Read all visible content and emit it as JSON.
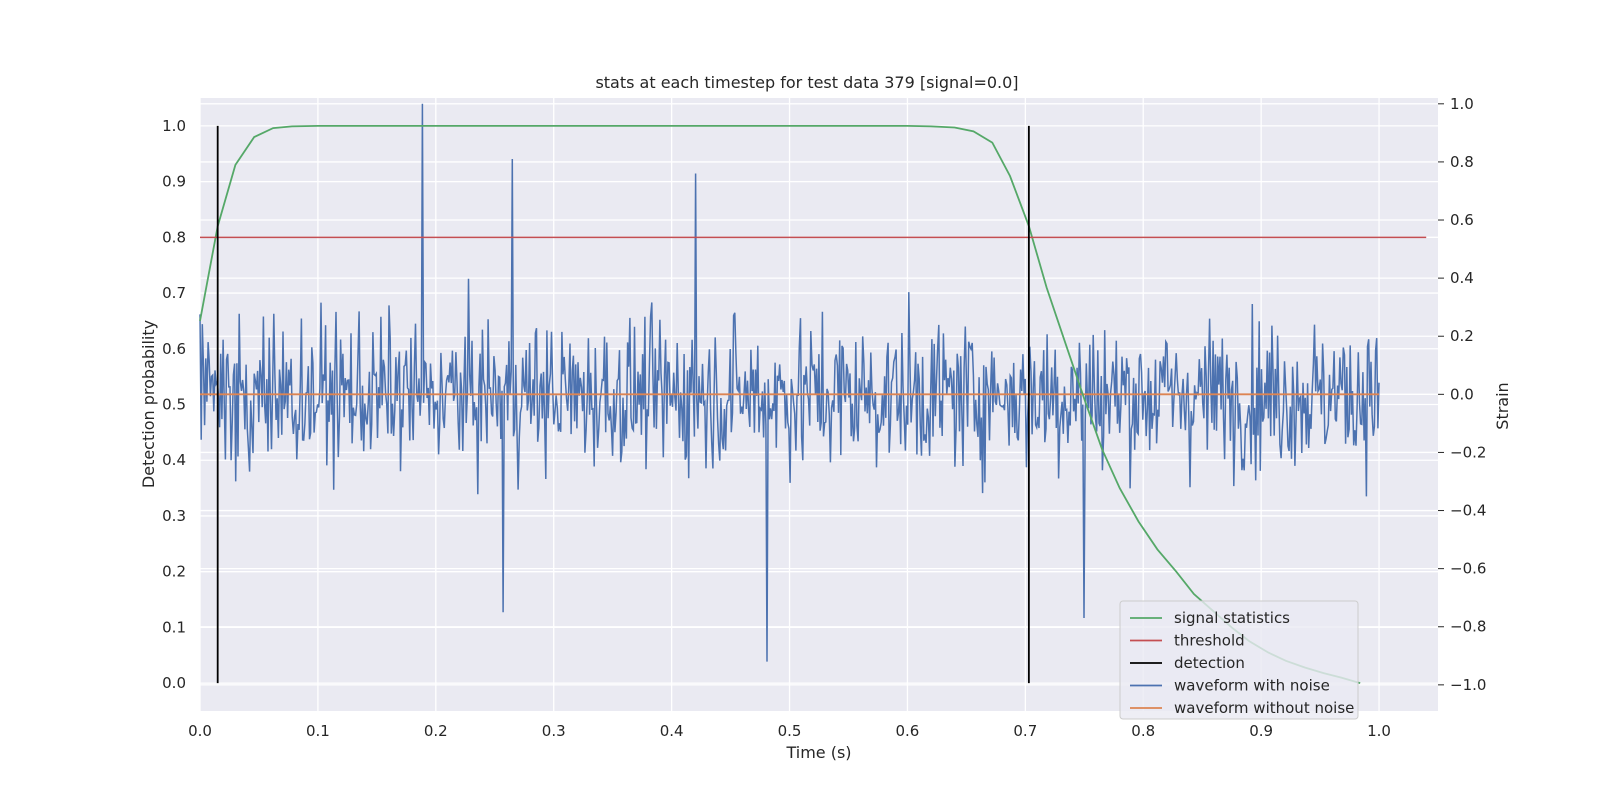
{
  "chart_data": {
    "type": "line",
    "title": "stats at each timestep for test data 379 [signal=0.0]",
    "xlabel": "Time (s)",
    "ylabel_left": "Detection probability",
    "ylabel_right": "Strain",
    "xlim": [
      0.0,
      1.05
    ],
    "ylim_left": [
      -0.05,
      1.05
    ],
    "ylim_right": [
      -1.09,
      1.02
    ],
    "x_ticks": [
      "0.0",
      "0.1",
      "0.2",
      "0.3",
      "0.4",
      "0.5",
      "0.6",
      "0.7",
      "0.8",
      "0.9",
      "1.0"
    ],
    "y_left_ticks": [
      "0.0",
      "0.1",
      "0.2",
      "0.3",
      "0.4",
      "0.5",
      "0.6",
      "0.7",
      "0.8",
      "0.9",
      "1.0"
    ],
    "y_right_ticks": [
      "−1.0",
      "−0.8",
      "−0.6",
      "−0.4",
      "−0.2",
      "0.0",
      "0.2",
      "0.4",
      "0.6",
      "0.8",
      "1.0"
    ],
    "grid": true,
    "legend_position": "lower-right",
    "series": [
      {
        "name": "signal statistics",
        "axis": "left",
        "color": "#55a868",
        "x": [
          0.0,
          0.015,
          0.03,
          0.046,
          0.062,
          0.078,
          0.1,
          0.2,
          0.3,
          0.4,
          0.5,
          0.6,
          0.62,
          0.64,
          0.656,
          0.672,
          0.687,
          0.703,
          0.718,
          0.734,
          0.75,
          0.765,
          0.78,
          0.796,
          0.812,
          0.828,
          0.843,
          0.859,
          0.875,
          0.89,
          0.906,
          0.921,
          0.937,
          0.953,
          0.968,
          0.984
        ],
        "values": [
          0.65,
          0.82,
          0.93,
          0.98,
          0.996,
          0.999,
          1.0,
          1.0,
          1.0,
          1.0,
          1.0,
          1.0,
          0.999,
          0.997,
          0.99,
          0.97,
          0.91,
          0.82,
          0.71,
          0.61,
          0.51,
          0.42,
          0.35,
          0.29,
          0.24,
          0.2,
          0.16,
          0.13,
          0.1,
          0.075,
          0.055,
          0.04,
          0.028,
          0.018,
          0.01,
          0.0
        ]
      },
      {
        "name": "threshold",
        "axis": "left",
        "color": "#c44e52",
        "x": [
          0.0,
          1.04
        ],
        "values": [
          0.8,
          0.8
        ]
      },
      {
        "name": "detection",
        "axis": "left",
        "color": "#000000",
        "type": "vlines",
        "x": [
          0.015,
          0.703
        ],
        "ymin": 0.0,
        "ymax": 1.0
      },
      {
        "name": "waveform with noise",
        "axis": "right",
        "color": "#4c72b0",
        "type": "noise",
        "x_range": [
          0.0,
          1.0
        ],
        "n_points": 1024,
        "std": 0.25,
        "peaks": [
          {
            "x": 0.189,
            "y": 1.0
          },
          {
            "x": 0.265,
            "y": 0.81
          },
          {
            "x": 0.42,
            "y": 0.76
          },
          {
            "x": 0.481,
            "y": -0.92
          },
          {
            "x": 0.257,
            "y": -0.75
          },
          {
            "x": 0.75,
            "y": -0.77
          }
        ]
      },
      {
        "name": "waveform without noise",
        "axis": "right",
        "color": "#dd8452",
        "x": [
          0.0,
          1.0
        ],
        "values": [
          0.0,
          0.0
        ]
      }
    ]
  }
}
